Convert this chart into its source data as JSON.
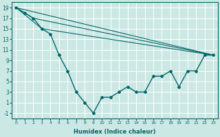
{
  "xlabel": "Humidex (Indice chaleur)",
  "bg_color": "#cce8e4",
  "grid_color": "#aad4cc",
  "line_color": "#006666",
  "xlim": [
    -0.5,
    23.5
  ],
  "ylim": [
    -2,
    20
  ],
  "xticks": [
    0,
    1,
    2,
    3,
    4,
    5,
    6,
    7,
    8,
    9,
    10,
    11,
    12,
    13,
    14,
    15,
    16,
    17,
    18,
    19,
    20,
    21,
    22,
    23
  ],
  "yticks": [
    -1,
    1,
    3,
    5,
    7,
    9,
    11,
    13,
    15,
    17,
    19
  ],
  "main_x": [
    0,
    1,
    2,
    3,
    4,
    5,
    6,
    7,
    8,
    9,
    10,
    11,
    12,
    13,
    14,
    15,
    16,
    17,
    18,
    19,
    20,
    21,
    22,
    23
  ],
  "main_y": [
    19,
    18,
    17,
    15,
    14,
    10,
    7,
    3,
    1,
    -1,
    2,
    2,
    3,
    4,
    3,
    3,
    6,
    6,
    7,
    4,
    7,
    7,
    10,
    10
  ],
  "envelope_lines": [
    {
      "x": [
        0,
        23
      ],
      "y": [
        19,
        10
      ]
    },
    {
      "x": [
        0,
        3,
        23
      ],
      "y": [
        19,
        15,
        10
      ]
    },
    {
      "x": [
        0,
        2,
        23
      ],
      "y": [
        19,
        17,
        10
      ]
    }
  ],
  "xlabel_fontsize": 6,
  "tick_fontsize_x": 4.5,
  "tick_fontsize_y": 5.5,
  "figsize": [
    3.2,
    2.0
  ],
  "dpi": 100
}
